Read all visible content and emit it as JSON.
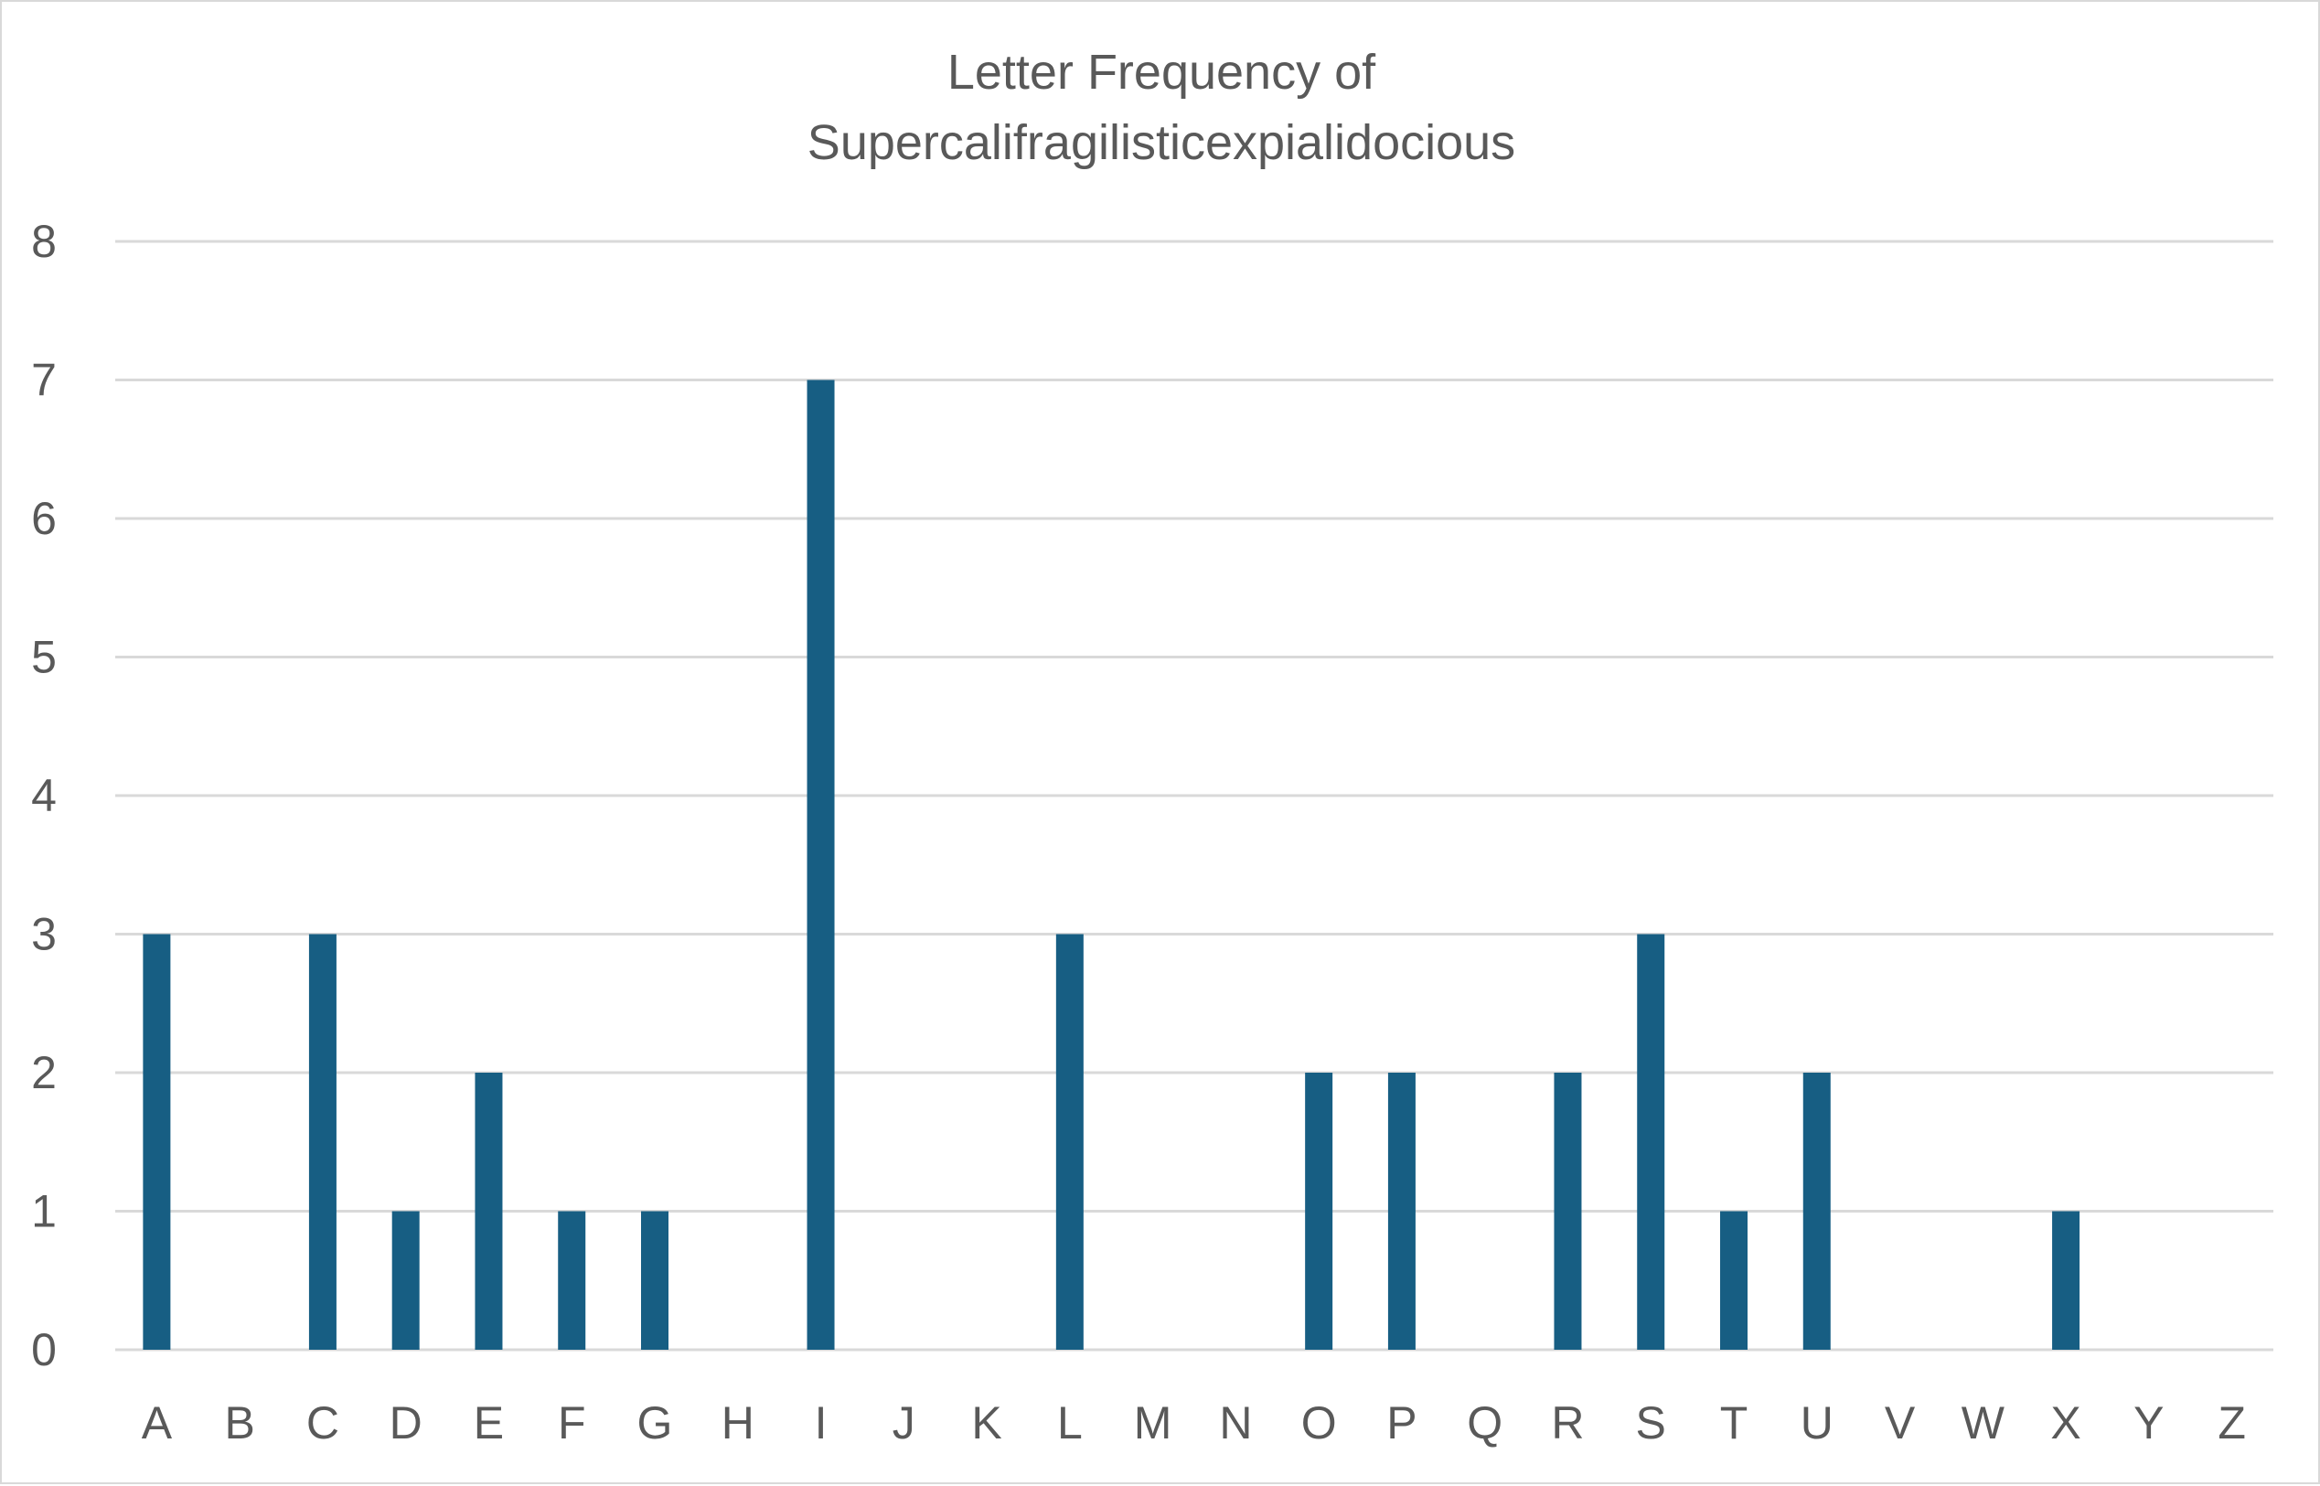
{
  "chart_data": {
    "type": "bar",
    "title_lines": [
      "Letter Frequency of",
      "Supercalifragilisticexpialidocious"
    ],
    "xlabel": "",
    "ylabel": "",
    "categories": [
      "A",
      "B",
      "C",
      "D",
      "E",
      "F",
      "G",
      "H",
      "I",
      "J",
      "K",
      "L",
      "M",
      "N",
      "O",
      "P",
      "Q",
      "R",
      "S",
      "T",
      "U",
      "V",
      "W",
      "X",
      "Y",
      "Z"
    ],
    "values": [
      3,
      0,
      3,
      1,
      2,
      1,
      1,
      0,
      7,
      0,
      0,
      3,
      0,
      0,
      2,
      2,
      0,
      2,
      3,
      1,
      2,
      0,
      0,
      1,
      0,
      0
    ],
    "ylim": [
      0,
      8
    ],
    "yticks": [
      "0",
      "1",
      "2",
      "3",
      "4",
      "5",
      "6",
      "7",
      "8"
    ],
    "grid": true,
    "legend": "none",
    "bar_color": "#175e83"
  }
}
